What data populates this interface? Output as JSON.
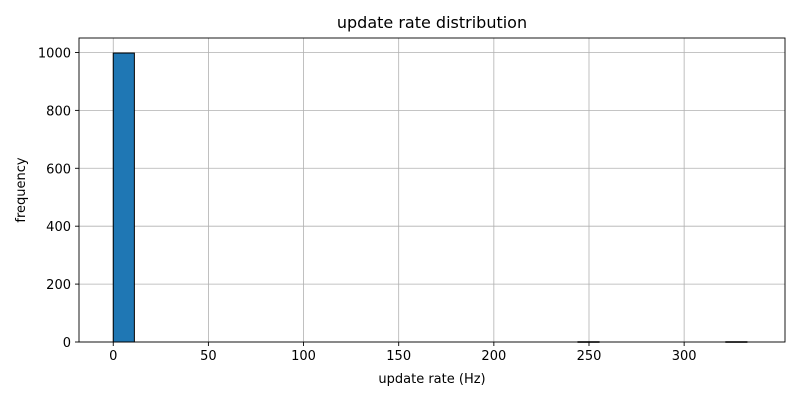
{
  "chart_data": {
    "type": "bar",
    "subtype": "histogram",
    "title": "update rate distribution",
    "xlabel": "update rate (Hz)",
    "ylabel": "frequency",
    "xlim": [
      -18,
      353
    ],
    "ylim": [
      0,
      1050
    ],
    "x_ticks": [
      0,
      50,
      100,
      150,
      200,
      250,
      300
    ],
    "y_ticks": [
      0,
      200,
      400,
      600,
      800,
      1000
    ],
    "grid": true,
    "bin_width": 11.1,
    "bins": [
      {
        "start": 0.0,
        "end": 11.1,
        "count": 998
      },
      {
        "start": 244.2,
        "end": 255.3,
        "count": 1
      },
      {
        "start": 321.9,
        "end": 333.0,
        "count": 1
      }
    ],
    "colors": {
      "bar_fill": "#1f77b4",
      "bar_edge": "#000000",
      "grid": "#b0b0b0",
      "axes": "#000000"
    }
  }
}
